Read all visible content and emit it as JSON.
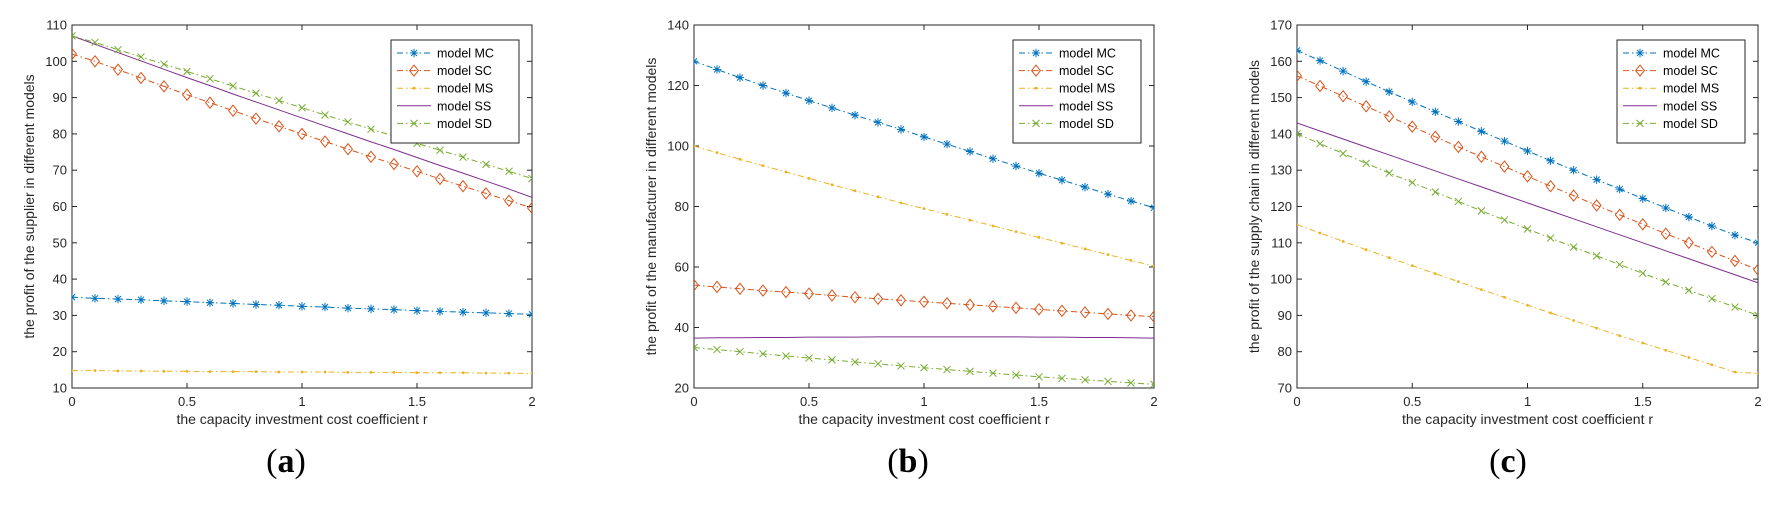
{
  "chart_data": [
    {
      "type": "line",
      "panel": "a",
      "caption_letter": "a",
      "xlabel": "the capacity investment cost coefficient r",
      "ylabel": "the profit of the supplier in different models",
      "xlim": [
        0,
        2
      ],
      "ylim": [
        10,
        110
      ],
      "xticks": [
        0,
        0.5,
        1,
        1.5,
        2
      ],
      "xtick_labels": [
        "0",
        "0.5",
        "1",
        "1.5",
        "2"
      ],
      "yticks": [
        10,
        20,
        30,
        40,
        50,
        60,
        70,
        80,
        90,
        100,
        110
      ],
      "ytick_labels": [
        "10",
        "20",
        "30",
        "40",
        "50",
        "60",
        "70",
        "80",
        "90",
        "100",
        "110"
      ],
      "legend_position": "top-right",
      "x": [
        0,
        0.1,
        0.2,
        0.3,
        0.4,
        0.5,
        0.6,
        0.7,
        0.8,
        0.9,
        1.0,
        1.1,
        1.2,
        1.3,
        1.4,
        1.5,
        1.6,
        1.7,
        1.8,
        1.9,
        2.0
      ],
      "series": [
        {
          "name": "model MC",
          "color": "#0072BD",
          "marker": "asterisk",
          "linestyle": "dashdot",
          "values": [
            35.0,
            34.7,
            34.5,
            34.3,
            34.0,
            33.8,
            33.5,
            33.3,
            33.0,
            32.8,
            32.5,
            32.3,
            32.0,
            31.8,
            31.6,
            31.3,
            31.1,
            30.9,
            30.7,
            30.5,
            30.3
          ]
        },
        {
          "name": "model SC",
          "color": "#D95319",
          "marker": "diamond",
          "linestyle": "dashdot",
          "values": [
            102.0,
            100.0,
            97.7,
            95.4,
            93.1,
            90.8,
            88.6,
            86.4,
            84.2,
            82.1,
            80.0,
            77.9,
            75.8,
            73.7,
            71.7,
            69.7,
            67.6,
            65.6,
            63.6,
            61.6,
            59.6
          ]
        },
        {
          "name": "model MS",
          "color": "#EDB120",
          "marker": "dot",
          "linestyle": "dashdot",
          "values": [
            14.8,
            14.8,
            14.7,
            14.7,
            14.6,
            14.6,
            14.5,
            14.5,
            14.5,
            14.4,
            14.4,
            14.4,
            14.3,
            14.3,
            14.3,
            14.2,
            14.2,
            14.2,
            14.1,
            14.1,
            14.0
          ]
        },
        {
          "name": "model SS",
          "color": "#7E2F8E",
          "marker": "none",
          "linestyle": "solid",
          "values": [
            107.0,
            104.7,
            102.4,
            100.1,
            97.8,
            95.5,
            93.3,
            91.0,
            88.8,
            86.6,
            84.4,
            82.2,
            80.0,
            77.8,
            75.7,
            73.5,
            71.3,
            69.2,
            67.0,
            64.8,
            62.5
          ]
        },
        {
          "name": "model SD",
          "color": "#77AC30",
          "marker": "x",
          "linestyle": "dashdot",
          "values": [
            107.0,
            105.2,
            103.2,
            101.2,
            99.2,
            97.2,
            95.2,
            93.2,
            91.2,
            89.2,
            87.2,
            85.2,
            83.3,
            81.3,
            79.4,
            77.4,
            75.5,
            73.6,
            71.6,
            69.7,
            67.7
          ]
        }
      ]
    },
    {
      "type": "line",
      "panel": "b",
      "caption_letter": "b",
      "xlabel": "the capacity investment cost coefficient r",
      "ylabel": "the profit of the manufacturer in different models",
      "xlim": [
        0,
        2
      ],
      "ylim": [
        20,
        140
      ],
      "xticks": [
        0,
        0.5,
        1,
        1.5,
        2
      ],
      "xtick_labels": [
        "0",
        "0.5",
        "1",
        "1.5",
        "2"
      ],
      "yticks": [
        20,
        40,
        60,
        80,
        100,
        120,
        140
      ],
      "ytick_labels": [
        "20",
        "40",
        "60",
        "80",
        "100",
        "120",
        "140"
      ],
      "legend_position": "top-right",
      "x": [
        0,
        0.1,
        0.2,
        0.3,
        0.4,
        0.5,
        0.6,
        0.7,
        0.8,
        0.9,
        1.0,
        1.1,
        1.2,
        1.3,
        1.4,
        1.5,
        1.6,
        1.7,
        1.8,
        1.9,
        2.0
      ],
      "series": [
        {
          "name": "model MC",
          "color": "#0072BD",
          "marker": "asterisk",
          "linestyle": "dashdot",
          "values": [
            128.0,
            125.3,
            122.6,
            120.0,
            117.5,
            115.0,
            112.6,
            110.2,
            107.8,
            105.5,
            103.0,
            100.6,
            98.2,
            95.8,
            93.4,
            91.0,
            88.7,
            86.4,
            84.1,
            81.8,
            79.6
          ]
        },
        {
          "name": "model SC",
          "color": "#D95319",
          "marker": "diamond",
          "linestyle": "dashdot",
          "values": [
            54.0,
            53.4,
            52.8,
            52.2,
            51.7,
            51.2,
            50.6,
            50.0,
            49.5,
            49.0,
            48.5,
            48.0,
            47.5,
            47.0,
            46.5,
            46.0,
            45.5,
            45.0,
            44.5,
            44.0,
            43.6
          ]
        },
        {
          "name": "model MS",
          "color": "#EDB120",
          "marker": "dot",
          "linestyle": "dashdot",
          "values": [
            100.0,
            97.8,
            95.6,
            93.5,
            91.4,
            89.3,
            87.2,
            85.2,
            83.2,
            81.2,
            79.3,
            77.4,
            75.5,
            73.6,
            71.7,
            69.8,
            67.9,
            66.0,
            64.1,
            62.2,
            60.3
          ]
        },
        {
          "name": "model SS",
          "color": "#7E2F8E",
          "marker": "none",
          "linestyle": "solid",
          "values": [
            36.5,
            36.6,
            36.6,
            36.7,
            36.7,
            36.8,
            36.8,
            36.8,
            36.9,
            36.9,
            36.9,
            36.9,
            36.9,
            36.9,
            36.9,
            36.8,
            36.8,
            36.7,
            36.7,
            36.6,
            36.5
          ]
        },
        {
          "name": "model SD",
          "color": "#77AC30",
          "marker": "x",
          "linestyle": "dashdot",
          "values": [
            33.4,
            32.7,
            32.0,
            31.3,
            30.6,
            29.9,
            29.3,
            28.6,
            28.0,
            27.3,
            26.7,
            26.1,
            25.5,
            24.9,
            24.3,
            23.7,
            23.2,
            22.7,
            22.2,
            21.7,
            21.2
          ]
        }
      ]
    },
    {
      "type": "line",
      "panel": "c",
      "caption_letter": "c",
      "xlabel": "the capacity investment cost coefficient r",
      "ylabel": "the profit of the supply chain in different models",
      "xlim": [
        0,
        2
      ],
      "ylim": [
        70,
        170
      ],
      "xticks": [
        0,
        0.5,
        1,
        1.5,
        2
      ],
      "xtick_labels": [
        "0",
        "0.5",
        "1",
        "1.5",
        "2"
      ],
      "yticks": [
        70,
        80,
        90,
        100,
        110,
        120,
        130,
        140,
        150,
        160,
        170
      ],
      "ytick_labels": [
        "70",
        "80",
        "90",
        "100",
        "110",
        "120",
        "130",
        "140",
        "150",
        "160",
        "170"
      ],
      "legend_position": "top-right",
      "x": [
        0,
        0.1,
        0.2,
        0.3,
        0.4,
        0.5,
        0.6,
        0.7,
        0.8,
        0.9,
        1.0,
        1.1,
        1.2,
        1.3,
        1.4,
        1.5,
        1.6,
        1.7,
        1.8,
        1.9,
        2.0
      ],
      "series": [
        {
          "name": "model MC",
          "color": "#0072BD",
          "marker": "asterisk",
          "linestyle": "dashdot",
          "values": [
            163.0,
            160.2,
            157.3,
            154.4,
            151.6,
            148.8,
            146.1,
            143.4,
            140.7,
            138.0,
            135.3,
            132.6,
            130.0,
            127.4,
            124.8,
            122.2,
            119.6,
            117.1,
            114.6,
            112.1,
            110.0
          ]
        },
        {
          "name": "model SC",
          "color": "#D95319",
          "marker": "diamond",
          "linestyle": "dashdot",
          "values": [
            156.0,
            153.2,
            150.4,
            147.6,
            144.8,
            142.0,
            139.2,
            136.4,
            133.7,
            131.0,
            128.3,
            125.6,
            123.0,
            120.3,
            117.7,
            115.1,
            112.5,
            110.0,
            107.5,
            105.0,
            102.6
          ]
        },
        {
          "name": "model MS",
          "color": "#EDB120",
          "marker": "dot",
          "linestyle": "dashdot",
          "values": [
            115.0,
            112.7,
            110.4,
            108.1,
            105.9,
            103.7,
            101.5,
            99.3,
            97.1,
            95.0,
            92.8,
            90.7,
            88.6,
            86.5,
            84.4,
            82.4,
            80.4,
            78.4,
            76.4,
            74.4,
            74.0
          ]
        },
        {
          "name": "model SS",
          "color": "#7E2F8E",
          "marker": "none",
          "linestyle": "solid",
          "values": [
            143.0,
            140.8,
            138.6,
            136.4,
            134.2,
            132.0,
            129.8,
            127.6,
            125.4,
            123.2,
            121.0,
            118.8,
            116.6,
            114.4,
            112.2,
            110.0,
            107.8,
            105.6,
            103.4,
            101.2,
            99.0
          ]
        },
        {
          "name": "model SD",
          "color": "#77AC30",
          "marker": "x",
          "linestyle": "dashdot",
          "values": [
            140.0,
            137.3,
            134.6,
            131.9,
            129.2,
            126.6,
            124.0,
            121.4,
            118.8,
            116.3,
            113.8,
            111.3,
            108.8,
            106.4,
            104.0,
            101.6,
            99.2,
            96.9,
            94.6,
            92.3,
            90.0
          ]
        }
      ]
    }
  ]
}
